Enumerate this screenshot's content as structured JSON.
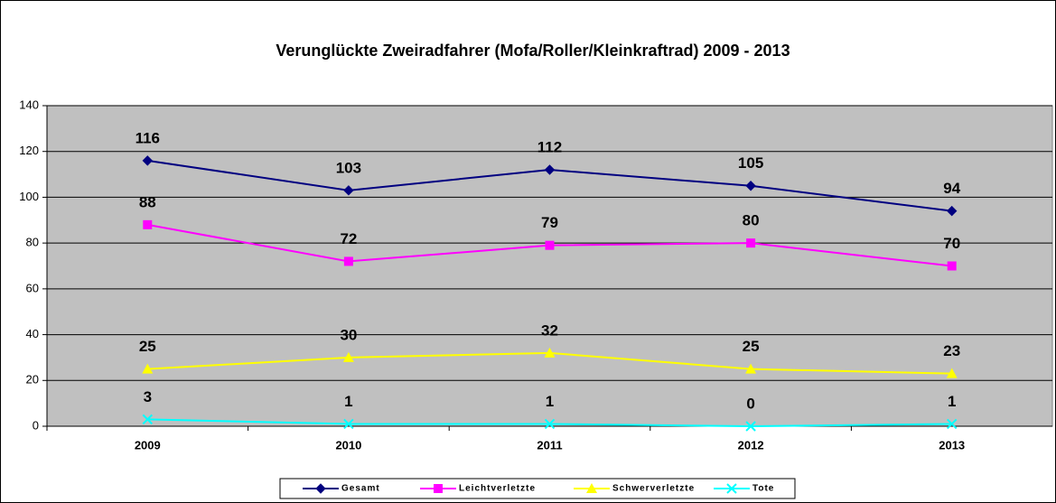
{
  "chart_data": {
    "type": "line",
    "title": "Verunglückte Zweiradfahrer (Mofa/Roller/Kleinkraftrad) 2009 - 2013",
    "categories": [
      "2009",
      "2010",
      "2011",
      "2012",
      "2013"
    ],
    "series": [
      {
        "name": "Gesamt",
        "color": "#000080",
        "marker": "diamond",
        "values": [
          116,
          103,
          112,
          105,
          94
        ]
      },
      {
        "name": "Leichtverletzte",
        "color": "#ff00ff",
        "marker": "square",
        "values": [
          88,
          72,
          79,
          80,
          70
        ]
      },
      {
        "name": "Schwerverletzte",
        "color": "#ffff00",
        "marker": "triangle",
        "values": [
          25,
          30,
          32,
          25,
          23
        ]
      },
      {
        "name": "Tote",
        "color": "#00ffff",
        "marker": "x",
        "values": [
          3,
          1,
          1,
          0,
          1
        ]
      }
    ],
    "ylim": [
      0,
      140
    ],
    "yticks": [
      0,
      20,
      40,
      60,
      80,
      100,
      120,
      140
    ],
    "grid": true,
    "legend": "bottom"
  }
}
